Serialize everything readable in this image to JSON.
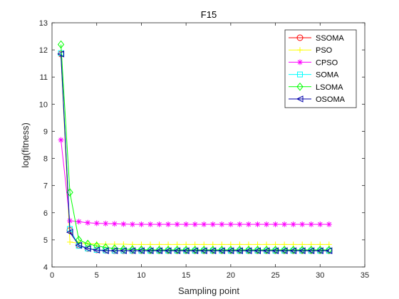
{
  "chart_data": {
    "type": "line",
    "title": "F15",
    "xlabel": "Sampling point",
    "ylabel": "log(fitness)",
    "xlim": [
      0,
      35
    ],
    "ylim": [
      4,
      13
    ],
    "xticks": [
      0,
      5,
      10,
      15,
      20,
      25,
      30,
      35
    ],
    "yticks": [
      4,
      5,
      6,
      7,
      8,
      9,
      10,
      11,
      12,
      13
    ],
    "grid": false,
    "legend_position": "top-right",
    "x": [
      1,
      2,
      3,
      4,
      5,
      6,
      7,
      8,
      9,
      10,
      11,
      12,
      13,
      14,
      15,
      16,
      17,
      18,
      19,
      20,
      21,
      22,
      23,
      24,
      25,
      26,
      27,
      28,
      29,
      30,
      31
    ],
    "series": [
      {
        "name": "SSOMA",
        "color": "#ff0000",
        "marker": "circle",
        "values": [
          11.85,
          5.35,
          4.8,
          4.68,
          4.63,
          4.61,
          4.6,
          4.6,
          4.6,
          4.6,
          4.6,
          4.6,
          4.6,
          4.6,
          4.6,
          4.6,
          4.6,
          4.6,
          4.6,
          4.6,
          4.6,
          4.6,
          4.6,
          4.6,
          4.6,
          4.6,
          4.6,
          4.6,
          4.6,
          4.6,
          4.6
        ]
      },
      {
        "name": "PSO",
        "color": "#ffff00",
        "marker": "plus",
        "values": [
          11.8,
          4.92,
          4.88,
          4.86,
          4.85,
          4.84,
          4.84,
          4.84,
          4.83,
          4.83,
          4.83,
          4.83,
          4.83,
          4.83,
          4.83,
          4.83,
          4.83,
          4.83,
          4.83,
          4.83,
          4.83,
          4.83,
          4.83,
          4.83,
          4.83,
          4.83,
          4.83,
          4.83,
          4.83,
          4.83,
          4.83
        ]
      },
      {
        "name": "CPSO",
        "color": "#ff00ff",
        "marker": "star",
        "values": [
          8.68,
          5.7,
          5.67,
          5.63,
          5.61,
          5.6,
          5.59,
          5.58,
          5.57,
          5.57,
          5.57,
          5.57,
          5.57,
          5.57,
          5.57,
          5.57,
          5.57,
          5.57,
          5.57,
          5.57,
          5.57,
          5.57,
          5.57,
          5.57,
          5.57,
          5.57,
          5.57,
          5.57,
          5.57,
          5.57,
          5.57
        ]
      },
      {
        "name": "SOMA",
        "color": "#00ffff",
        "marker": "square",
        "values": [
          11.88,
          5.4,
          4.78,
          4.68,
          4.63,
          4.61,
          4.6,
          4.6,
          4.6,
          4.6,
          4.6,
          4.6,
          4.6,
          4.6,
          4.6,
          4.6,
          4.6,
          4.6,
          4.6,
          4.6,
          4.6,
          4.6,
          4.6,
          4.6,
          4.6,
          4.6,
          4.6,
          4.6,
          4.6,
          4.6,
          4.6
        ]
      },
      {
        "name": "LSOMA",
        "color": "#00ff00",
        "marker": "diamond",
        "values": [
          12.2,
          6.75,
          5.0,
          4.85,
          4.78,
          4.72,
          4.68,
          4.66,
          4.65,
          4.64,
          4.63,
          4.63,
          4.63,
          4.63,
          4.63,
          4.63,
          4.63,
          4.63,
          4.63,
          4.63,
          4.63,
          4.63,
          4.63,
          4.63,
          4.63,
          4.63,
          4.63,
          4.63,
          4.63,
          4.63,
          4.63
        ]
      },
      {
        "name": "OSOMA",
        "color": "#0000aa",
        "marker": "triangle-left",
        "values": [
          11.85,
          5.28,
          4.8,
          4.68,
          4.62,
          4.6,
          4.6,
          4.6,
          4.6,
          4.6,
          4.6,
          4.6,
          4.6,
          4.6,
          4.6,
          4.6,
          4.6,
          4.6,
          4.6,
          4.6,
          4.6,
          4.6,
          4.6,
          4.6,
          4.6,
          4.6,
          4.6,
          4.6,
          4.6,
          4.6,
          4.6
        ]
      }
    ]
  }
}
